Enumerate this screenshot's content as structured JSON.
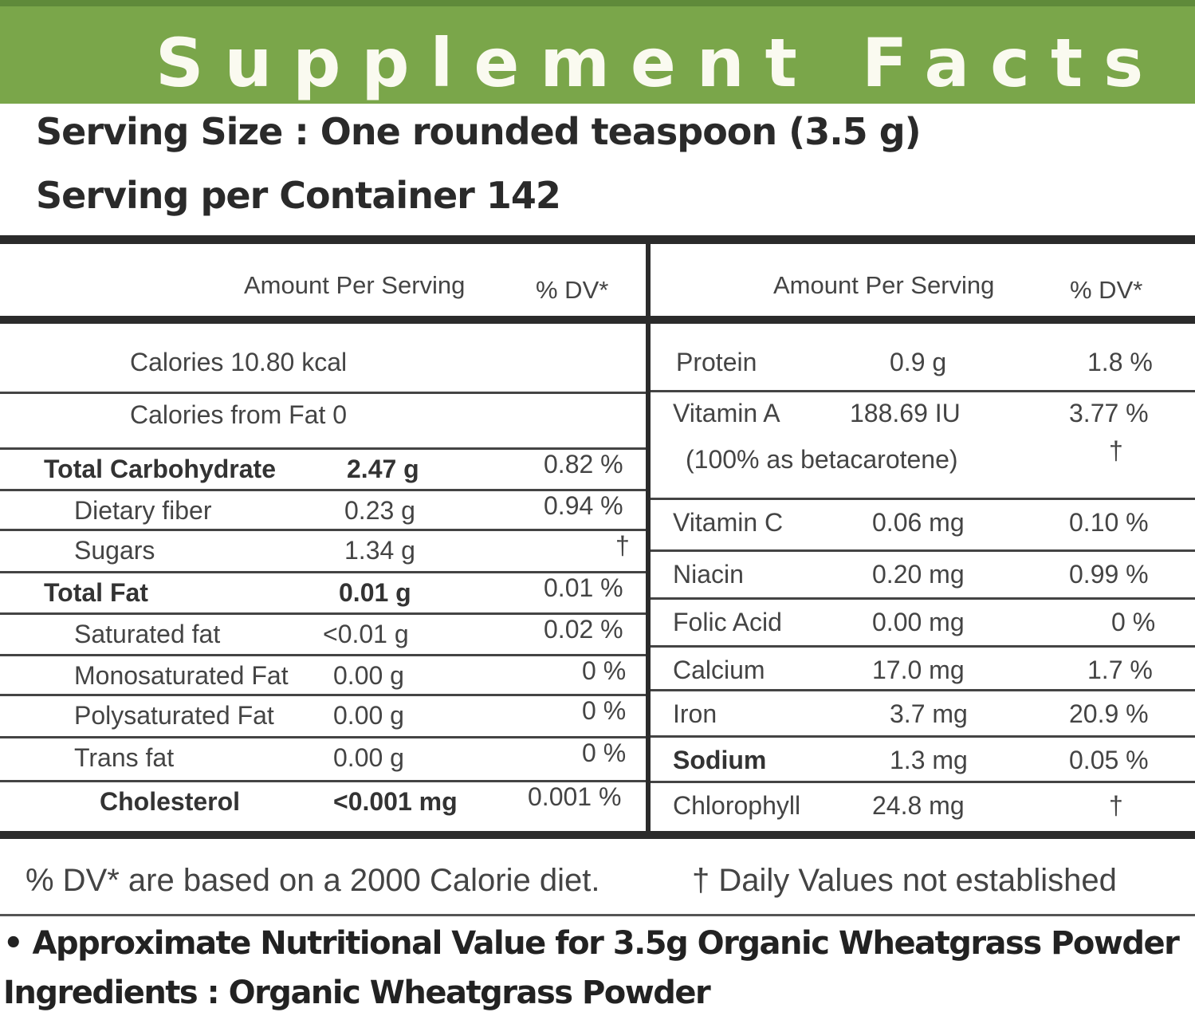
{
  "title": "Supplement Facts",
  "serving_size": "Serving Size : One rounded teaspoon (3.5 g)",
  "servings_per_container": "Serving per Container 142",
  "headers": {
    "amount": "Amount Per Serving",
    "dv": "% DV*"
  },
  "left_rows": [
    {
      "name": "Calories 10.80 kcal",
      "amount": "",
      "dv": ""
    },
    {
      "name": "Calories from Fat 0",
      "amount": "",
      "dv": ""
    },
    {
      "name": "Total Carbohydrate",
      "amount": "2.47 g",
      "dv": "0.82 %"
    },
    {
      "name": "Dietary fiber",
      "amount": "0.23 g",
      "dv": "0.94 %"
    },
    {
      "name": "Sugars",
      "amount": "1.34 g",
      "dv": "†"
    },
    {
      "name": "Total Fat",
      "amount": "0.01 g",
      "dv": "0.01 %"
    },
    {
      "name": "Saturated fat",
      "amount": "<0.01 g",
      "dv": "0.02 %"
    },
    {
      "name": "Monosaturated Fat",
      "amount": "0.00 g",
      "dv": "0 %"
    },
    {
      "name": "Polysaturated Fat",
      "amount": "0.00 g",
      "dv": "0 %"
    },
    {
      "name": "Trans fat",
      "amount": "0.00 g",
      "dv": "0 %"
    },
    {
      "name": "Cholesterol",
      "amount": "<0.001 mg",
      "dv": "0.001 %"
    }
  ],
  "right_rows": [
    {
      "name": "Protein",
      "amount": "0.9 g",
      "dv": "1.8 %"
    },
    {
      "name": "Vitamin A",
      "amount": "188.69 IU",
      "dv": "3.77 %",
      "note": "(100% as betacarotene)",
      "note_dv": "†"
    },
    {
      "name": "Vitamin C",
      "amount": "0.06 mg",
      "dv": "0.10 %"
    },
    {
      "name": "Niacin",
      "amount": "0.20 mg",
      "dv": "0.99 %"
    },
    {
      "name": "Folic Acid",
      "amount": "0.00 mg",
      "dv": "0 %"
    },
    {
      "name": "Calcium",
      "amount": "17.0 mg",
      "dv": "1.7 %"
    },
    {
      "name": "Iron",
      "amount": "3.7 mg",
      "dv": "20.9 %"
    },
    {
      "name": "Sodium",
      "amount": "1.3 mg",
      "dv": "0.05 %"
    },
    {
      "name": "Chlorophyll",
      "amount": "24.8 mg",
      "dv": "†"
    }
  ],
  "footnote_dv": "% DV* are based on a 2000 Calorie diet.",
  "footnote_dagger": "† Daily Values not established",
  "approx_note": "• Approximate Nutritional Value for 3.5g Organic Wheatgrass Powder",
  "ingredients": "Ingredients : Organic Wheatgrass Powder"
}
